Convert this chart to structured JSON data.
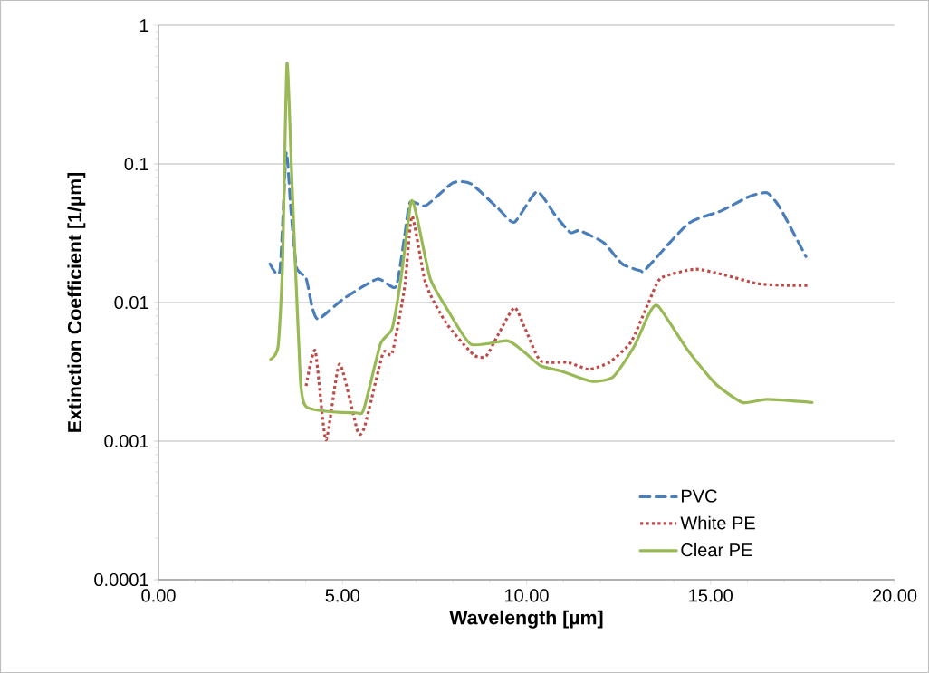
{
  "chart_data": {
    "type": "line",
    "xlabel": "Wavelength [µm]",
    "ylabel": "Extinction Coefficient [1/µm]",
    "log": "y",
    "grid": "y",
    "legend": "bottom right",
    "marker": "none",
    "xlim": [
      0,
      20
    ],
    "ylim": [
      0.0001,
      1
    ],
    "xticks": [
      {
        "value": 0,
        "label": "0.00"
      },
      {
        "value": 5,
        "label": "5.00"
      },
      {
        "value": 10,
        "label": "10.00"
      },
      {
        "value": 15,
        "label": "15.00"
      },
      {
        "value": 20,
        "label": "20.00"
      }
    ],
    "yticks": [
      0.0001,
      0.001,
      0.01,
      0.1,
      1
    ],
    "series": [
      {
        "name": "PVC",
        "color": "#4a7ebb",
        "line_style": "dashed",
        "x": [
          3.03,
          3.3,
          3.47,
          3.6,
          3.75,
          4.01,
          4.18,
          4.35,
          5.04,
          5.95,
          6.45,
          6.69,
          6.84,
          7.26,
          8.0,
          8.49,
          9.22,
          9.67,
          10.28,
          10.77,
          11.19,
          11.44,
          12.1,
          12.6,
          13.09,
          13.24,
          14.39,
          15.3,
          16.04,
          16.53,
          16.85,
          17.17,
          17.59
        ],
        "values": [
          0.019,
          0.017,
          0.12,
          0.046,
          0.018,
          0.015,
          0.0092,
          0.0076,
          0.0107,
          0.0148,
          0.013,
          0.0305,
          0.053,
          0.05,
          0.073,
          0.072,
          0.048,
          0.038,
          0.063,
          0.043,
          0.032,
          0.033,
          0.027,
          0.019,
          0.017,
          0.0174,
          0.037,
          0.046,
          0.058,
          0.062,
          0.05,
          0.035,
          0.0215
        ]
      },
      {
        "name": "White PE",
        "color": "#be4b48",
        "line_style": "dotted",
        "x": [
          4.01,
          4.26,
          4.55,
          4.92,
          5.41,
          5.6,
          6.1,
          6.35,
          6.69,
          6.89,
          7.26,
          7.82,
          8.56,
          8.9,
          9.22,
          9.67,
          9.96,
          10.38,
          11.12,
          11.69,
          12.25,
          12.84,
          13.33,
          13.65,
          14.56,
          15.3,
          16.28,
          17.02,
          17.64
        ],
        "values": [
          0.0025,
          0.0045,
          0.00102,
          0.0036,
          0.00118,
          0.00127,
          0.0043,
          0.0043,
          0.013,
          0.042,
          0.0137,
          0.0071,
          0.0042,
          0.0041,
          0.0058,
          0.0092,
          0.0065,
          0.0038,
          0.0037,
          0.0033,
          0.0037,
          0.0052,
          0.0102,
          0.015,
          0.0174,
          0.016,
          0.0137,
          0.0133,
          0.0133
        ]
      },
      {
        "name": "Clear PE",
        "color": "#98b954",
        "line_style": "solid",
        "x": [
          3.05,
          3.25,
          3.37,
          3.49,
          3.62,
          3.81,
          3.99,
          5.36,
          5.58,
          6.03,
          6.35,
          6.59,
          6.86,
          7.01,
          7.38,
          7.82,
          8.49,
          9.47,
          9.89,
          10.38,
          10.95,
          11.76,
          12.35,
          12.92,
          13.33,
          13.58,
          14.39,
          15.13,
          15.87,
          16.53,
          17.76
        ],
        "values": [
          0.0039,
          0.0048,
          0.0185,
          0.53,
          0.083,
          0.0052,
          0.0018,
          0.0016,
          0.0017,
          0.005,
          0.0065,
          0.015,
          0.053,
          0.043,
          0.015,
          0.0092,
          0.005,
          0.0053,
          0.0045,
          0.0035,
          0.0032,
          0.0027,
          0.0029,
          0.0048,
          0.0083,
          0.0094,
          0.0045,
          0.0026,
          0.0019,
          0.002,
          0.0019
        ]
      }
    ]
  }
}
